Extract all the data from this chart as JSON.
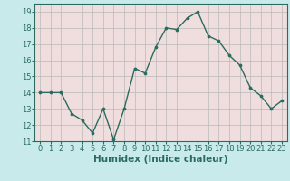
{
  "x": [
    0,
    1,
    2,
    3,
    4,
    5,
    6,
    7,
    8,
    9,
    10,
    11,
    12,
    13,
    14,
    15,
    16,
    17,
    18,
    19,
    20,
    21,
    22,
    23
  ],
  "y": [
    14.0,
    14.0,
    14.0,
    12.7,
    12.3,
    11.5,
    13.0,
    11.1,
    13.0,
    15.5,
    15.2,
    16.8,
    18.0,
    17.9,
    18.6,
    19.0,
    17.5,
    17.2,
    16.3,
    15.7,
    14.3,
    13.8,
    13.0,
    13.5
  ],
  "xlabel": "Humidex (Indice chaleur)",
  "ylim": [
    11.0,
    19.5
  ],
  "xlim": [
    -0.5,
    23.5
  ],
  "yticks": [
    11,
    12,
    13,
    14,
    15,
    16,
    17,
    18,
    19
  ],
  "xticks": [
    0,
    1,
    2,
    3,
    4,
    5,
    6,
    7,
    8,
    9,
    10,
    11,
    12,
    13,
    14,
    15,
    16,
    17,
    18,
    19,
    20,
    21,
    22,
    23
  ],
  "line_color": "#2a6b60",
  "marker_color": "#2a6b60",
  "outer_bg": "#c8eaea",
  "plot_bg": "#f0dede",
  "grid_color": "#b8b8b8",
  "text_color": "#2a6b60",
  "xlabel_fontsize": 7.5,
  "tick_fontsize": 6.0
}
